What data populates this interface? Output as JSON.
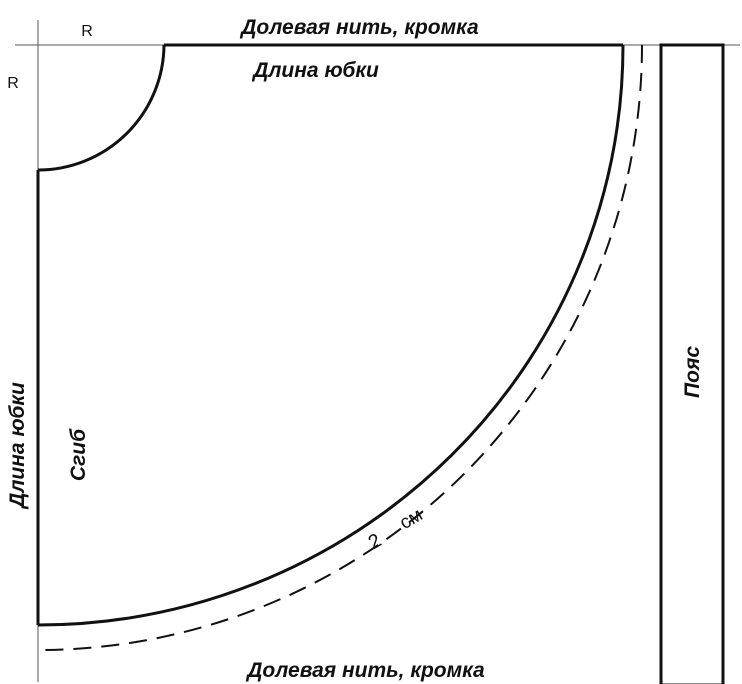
{
  "labels": {
    "grain_top": "Долевая нить, кромка",
    "grain_bottom": "Долевая нить, кромка",
    "length_top": "Длина юбки",
    "length_left": "Длина юбки",
    "fold": "Сгиб",
    "belt": "Пояс",
    "radius_top": "R",
    "radius_left": "R",
    "seam_number": "2",
    "seam_unit": "см"
  },
  "colors": {
    "line": "#111111",
    "guide": "#555555",
    "background": "#ffffff"
  }
}
